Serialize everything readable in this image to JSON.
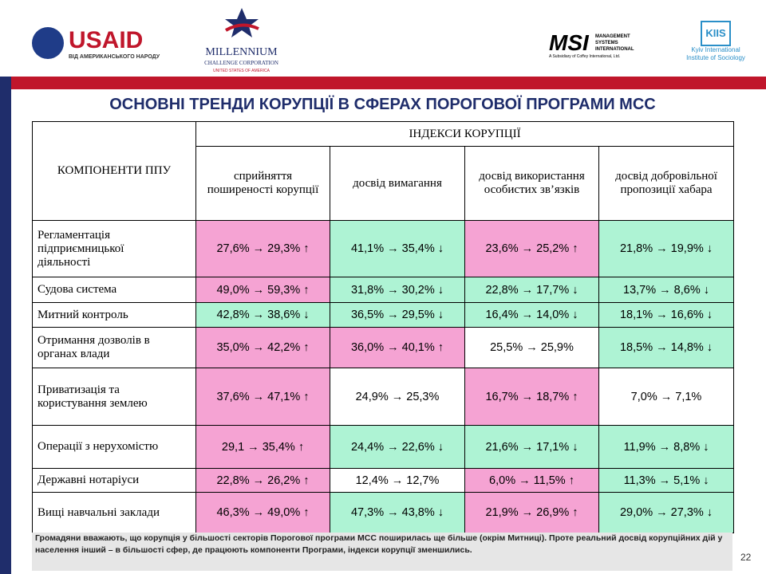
{
  "logos": {
    "usaid": "USAID",
    "usaid_sub": "ВІД АМЕРИКАНСЬКОГО НАРОДУ",
    "mcc_title": "MILLENNIUM",
    "mcc_sub": "CHALLENGE CORPORATION",
    "mcc_country": "UNITED STATES OF AMERICA",
    "msi": "MSI",
    "msi_sub": "MANAGEMENT SYSTEMS INTERNATIONAL",
    "msi_tag": "A Subsidiary of Coffey International, Ltd.",
    "kiis": "KIIS",
    "kiis_sub": "Kyiv International Institute of Sociology"
  },
  "title": "ОСНОВНІ ТРЕНДИ КОРУПЦІЇ В СФЕРАХ ПОРОГОВОЇ ПРОГРАМИ МСС",
  "table": {
    "corner": "КОМПОНЕНТИ ППУ",
    "group": "ІНДЕКСИ КОРУПЦІЇ",
    "columns": [
      "сприйняття поширеності корупції",
      "досвід вимагання",
      "досвід використання особистих зв’язків",
      "досвід добровільної пропозиції хабара"
    ],
    "colors": {
      "up": "#f5a3d3",
      "down": "#aef3d4",
      "same": "#ffffff"
    },
    "rows": [
      {
        "label": "Регламентація підприємницької діяльності",
        "cells": [
          {
            "text": "27,6% → 29,3%",
            "arrow": "↑",
            "trend": "up"
          },
          {
            "text": "41,1% → 35,4%",
            "arrow": "↓",
            "trend": "down"
          },
          {
            "text": "23,6% → 25,2%",
            "arrow": "↑",
            "trend": "up"
          },
          {
            "text": "21,8% → 19,9%",
            "arrow": "↓",
            "trend": "down"
          }
        ]
      },
      {
        "label": "Судова система",
        "cells": [
          {
            "text": "49,0% → 59,3%",
            "arrow": "↑",
            "trend": "up"
          },
          {
            "text": "31,8% → 30,2%",
            "arrow": "↓",
            "trend": "down"
          },
          {
            "text": "22,8% → 17,7%",
            "arrow": "↓",
            "trend": "down"
          },
          {
            "text": "13,7% → 8,6%",
            "arrow": "↓",
            "trend": "down"
          }
        ]
      },
      {
        "label": "Митний контроль",
        "cells": [
          {
            "text": "42,8% → 38,6%",
            "arrow": "↓",
            "trend": "down"
          },
          {
            "text": "36,5% → 29,5%",
            "arrow": "↓",
            "trend": "down"
          },
          {
            "text": "16,4% → 14,0%",
            "arrow": "↓",
            "trend": "down"
          },
          {
            "text": "18,1% → 16,6%",
            "arrow": "↓",
            "trend": "down"
          }
        ]
      },
      {
        "label": "Отримання дозволів в органах влади",
        "cells": [
          {
            "text": "35,0% → 42,2%",
            "arrow": "↑",
            "trend": "up"
          },
          {
            "text": "36,0% → 40,1%",
            "arrow": "↑",
            "trend": "up"
          },
          {
            "text": "25,5% → 25,9%",
            "trend": "same"
          },
          {
            "text": "18,5% → 14,8%",
            "arrow": "↓",
            "trend": "down"
          }
        ]
      },
      {
        "label": "Приватизація та користування землею",
        "cells": [
          {
            "text": "37,6% → 47,1%",
            "arrow": "↑",
            "trend": "up"
          },
          {
            "text": "24,9% → 25,3%",
            "trend": "same"
          },
          {
            "text": "16,7% → 18,7%",
            "arrow": "↑",
            "trend": "up"
          },
          {
            "text": "7,0% → 7,1%",
            "trend": "same"
          }
        ]
      },
      {
        "label": "Операції з нерухомістю",
        "cells": [
          {
            "text": "29,1 → 35,4%",
            "arrow": "↑",
            "trend": "up"
          },
          {
            "text": "24,4% → 22,6%",
            "arrow": "↓",
            "trend": "down"
          },
          {
            "text": "21,6% → 17,1%",
            "arrow": "↓",
            "trend": "down"
          },
          {
            "text": "11,9% → 8,8%",
            "arrow": "↓",
            "trend": "down"
          }
        ]
      },
      {
        "label": "Державні нотаріуси",
        "cells": [
          {
            "text": "22,8% → 26,2%",
            "arrow": "↑",
            "trend": "up"
          },
          {
            "text": "12,4% → 12,7%",
            "trend": "same"
          },
          {
            "text": "6,0% → 11,5%",
            "arrow": "↑",
            "trend": "up"
          },
          {
            "text": "11,3% → 5,1%",
            "arrow": "↓",
            "trend": "down"
          }
        ]
      },
      {
        "label": "Вищі навчальні заклади",
        "cells": [
          {
            "text": "46,3% → 49,0%",
            "arrow": "↑",
            "trend": "up"
          },
          {
            "text": "47,3% → 43,8%",
            "arrow": "↓",
            "trend": "down"
          },
          {
            "text": "21,9% → 26,9%",
            "arrow": "↑",
            "trend": "up"
          },
          {
            "text": "29,0% → 27,3%",
            "arrow": "↓",
            "trend": "down"
          }
        ]
      }
    ]
  },
  "footer": "Громадяни вважають, що корупція у більшості секторів Порогової програми МСС поширилась ще більше (окрім Митниці). Проте реальний досвід  корупційних дій  у населення  інший – в більшості сфер, де працюють компоненти Програми, індекси корупції зменшились.",
  "page_number": "22"
}
